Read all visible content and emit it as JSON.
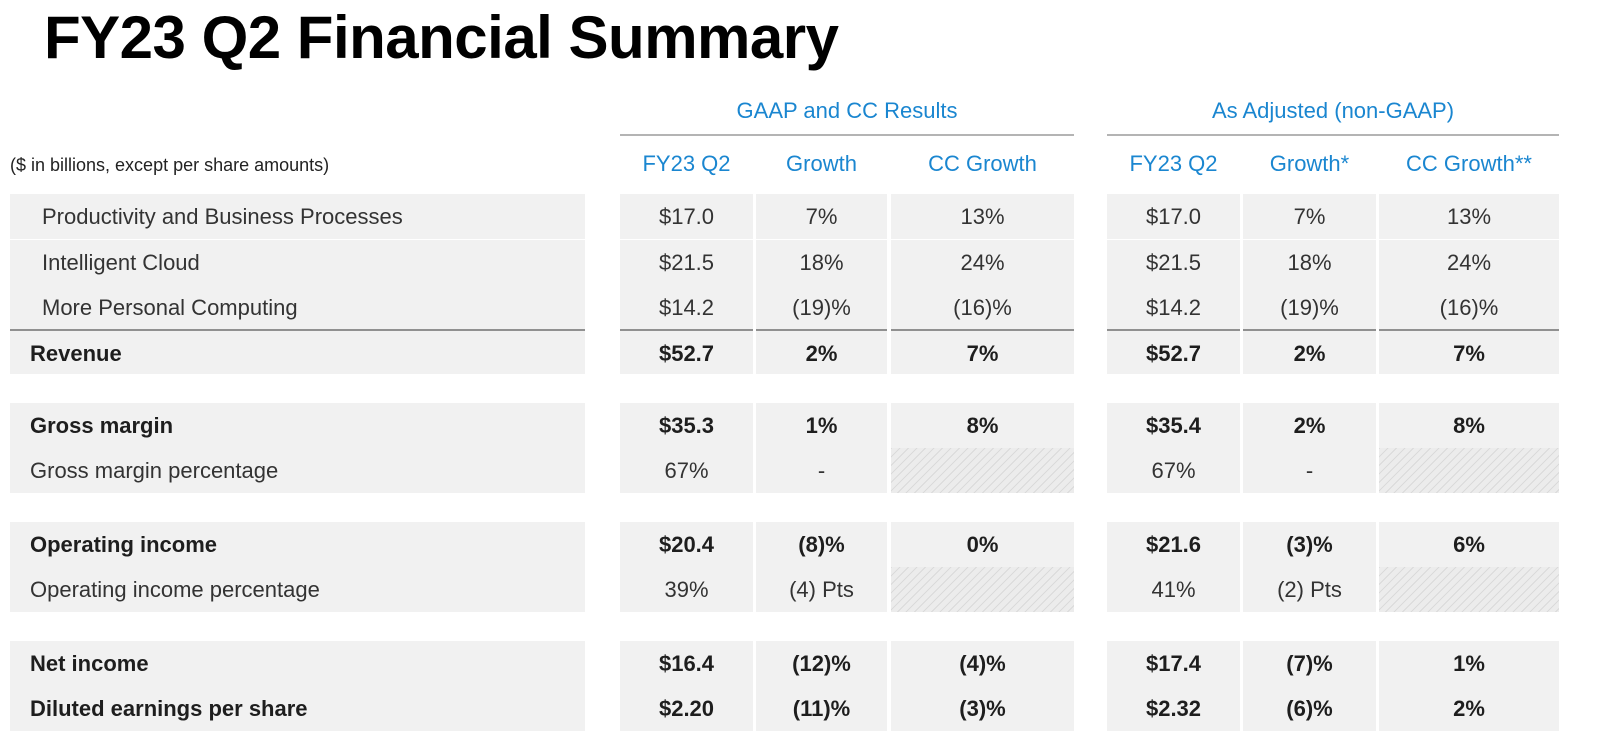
{
  "title": "FY23 Q2 Financial Summary",
  "units_note": "($ in billions, except per share amounts)",
  "groups": {
    "gaap": {
      "header": "GAAP and CC Results",
      "columns": [
        "FY23 Q2",
        "Growth",
        "CC Growth"
      ]
    },
    "adjusted": {
      "header": "As Adjusted (non-GAAP)",
      "columns": [
        "FY23 Q2",
        "Growth*",
        "CC Growth**"
      ]
    }
  },
  "rows": [
    {
      "label": "Productivity and Business Processes",
      "gaap": [
        "$17.0",
        "7%",
        "13%"
      ],
      "adjusted": [
        "$17.0",
        "7%",
        "13%"
      ]
    },
    {
      "label": "Intelligent Cloud",
      "gaap": [
        "$21.5",
        "18%",
        "24%"
      ],
      "adjusted": [
        "$21.5",
        "18%",
        "24%"
      ]
    },
    {
      "label": "More Personal Computing",
      "gaap": [
        "$14.2",
        "(19)%",
        "(16)%"
      ],
      "adjusted": [
        "$14.2",
        "(19)%",
        "(16)%"
      ]
    },
    {
      "label": "Revenue",
      "gaap": [
        "$52.7",
        "2%",
        "7%"
      ],
      "adjusted": [
        "$52.7",
        "2%",
        "7%"
      ]
    },
    {
      "label": "Gross margin",
      "gaap": [
        "$35.3",
        "1%",
        "8%"
      ],
      "adjusted": [
        "$35.4",
        "2%",
        "8%"
      ]
    },
    {
      "label": "Gross margin percentage",
      "gaap": [
        "67%",
        "-",
        ""
      ],
      "adjusted": [
        "67%",
        "-",
        ""
      ]
    },
    {
      "label": "Operating income",
      "gaap": [
        "$20.4",
        "(8)%",
        "0%"
      ],
      "adjusted": [
        "$21.6",
        "(3)%",
        "6%"
      ]
    },
    {
      "label": "Operating income percentage",
      "gaap": [
        "39%",
        "(4) Pts",
        ""
      ],
      "adjusted": [
        "41%",
        "(2) Pts",
        ""
      ]
    },
    {
      "label": "Net income",
      "gaap": [
        "$16.4",
        "(12)%",
        "(4)%"
      ],
      "adjusted": [
        "$17.4",
        "(7)%",
        "1%"
      ]
    },
    {
      "label": "Diluted earnings per share",
      "gaap": [
        "$2.20",
        "(11)%",
        "(3)%"
      ],
      "adjusted": [
        "$2.32",
        "(6)%",
        "2%"
      ]
    }
  ]
}
